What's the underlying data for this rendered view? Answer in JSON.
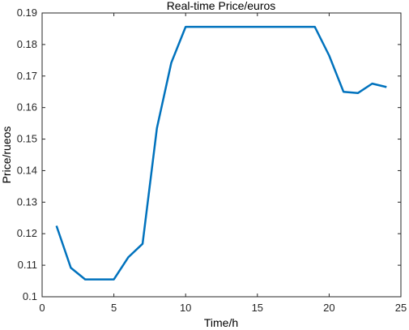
{
  "chart_data": {
    "type": "line",
    "title": "Real-time Price/euros",
    "xlabel": "Time/h",
    "ylabel": "Price/rueos",
    "xlim": [
      0,
      25
    ],
    "ylim": [
      0.1,
      0.19
    ],
    "xticks": [
      "0",
      "5",
      "10",
      "15",
      "20",
      "25"
    ],
    "yticks": [
      "0.1",
      "0.11",
      "0.12",
      "0.13",
      "0.14",
      "0.15",
      "0.16",
      "0.17",
      "0.18",
      "0.19"
    ],
    "grid": false,
    "series": [
      {
        "color": "#0072BD",
        "x": [
          1,
          2,
          3,
          4,
          5,
          6,
          7,
          8,
          9,
          10,
          11,
          12,
          13,
          14,
          15,
          16,
          17,
          18,
          19,
          20,
          21,
          22,
          23,
          24
        ],
        "y": [
          0.1225,
          0.1092,
          0.1055,
          0.1055,
          0.1055,
          0.1125,
          0.1168,
          0.1535,
          0.1742,
          0.1856,
          0.1856,
          0.1856,
          0.1856,
          0.1856,
          0.1856,
          0.1856,
          0.1856,
          0.1856,
          0.1856,
          0.1765,
          0.165,
          0.1646,
          0.1676,
          0.1665
        ]
      }
    ]
  }
}
